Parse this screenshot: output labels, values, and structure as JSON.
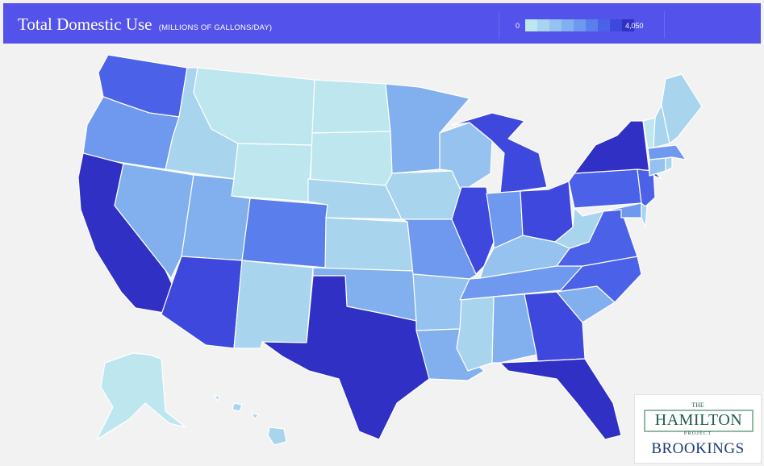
{
  "header": {
    "title": "Total Domestic Use",
    "units": "(MILLIONS OF GALLONS/DAY)"
  },
  "legend": {
    "min": "0",
    "max": "4,050",
    "colors": [
      "#bde6ef",
      "#a9d4ee",
      "#95c2ee",
      "#82b0ee",
      "#6e99ee",
      "#5a7fec",
      "#4b62e8",
      "#3e48dd",
      "#3030c4"
    ]
  },
  "logo": {
    "the": "THE",
    "hamilton": "HAMILTON",
    "project": "PROJECT",
    "brookings": "BROOKINGS"
  },
  "map_data": {
    "metric": "Total Domestic Use",
    "unit": "millions of gallons/day",
    "states": [
      {
        "id": "WA",
        "level": 6
      },
      {
        "id": "OR",
        "level": 4
      },
      {
        "id": "CA",
        "level": 8
      },
      {
        "id": "ID",
        "level": 1
      },
      {
        "id": "NV",
        "level": 3
      },
      {
        "id": "MT",
        "level": 0
      },
      {
        "id": "WY",
        "level": 0
      },
      {
        "id": "UT",
        "level": 3
      },
      {
        "id": "AZ",
        "level": 7
      },
      {
        "id": "CO",
        "level": 5
      },
      {
        "id": "NM",
        "level": 1
      },
      {
        "id": "ND",
        "level": 0
      },
      {
        "id": "SD",
        "level": 0
      },
      {
        "id": "NE",
        "level": 1
      },
      {
        "id": "KS",
        "level": 1
      },
      {
        "id": "OK",
        "level": 3
      },
      {
        "id": "TX",
        "level": 8
      },
      {
        "id": "MN",
        "level": 3
      },
      {
        "id": "IA",
        "level": 1
      },
      {
        "id": "MO",
        "level": 4
      },
      {
        "id": "AR",
        "level": 2
      },
      {
        "id": "LA",
        "level": 3
      },
      {
        "id": "WI",
        "level": 2
      },
      {
        "id": "IL",
        "level": 7
      },
      {
        "id": "MI",
        "level": 7
      },
      {
        "id": "IN",
        "level": 4
      },
      {
        "id": "OH",
        "level": 7
      },
      {
        "id": "KY",
        "level": 2
      },
      {
        "id": "TN",
        "level": 4
      },
      {
        "id": "MS",
        "level": 1
      },
      {
        "id": "AL",
        "level": 3
      },
      {
        "id": "GA",
        "level": 7
      },
      {
        "id": "FL",
        "level": 8
      },
      {
        "id": "SC",
        "level": 3
      },
      {
        "id": "NC",
        "level": 6
      },
      {
        "id": "VA",
        "level": 6
      },
      {
        "id": "WV",
        "level": 1
      },
      {
        "id": "PA",
        "level": 6
      },
      {
        "id": "NY",
        "level": 8
      },
      {
        "id": "VT",
        "level": 0
      },
      {
        "id": "NH",
        "level": 1
      },
      {
        "id": "ME",
        "level": 1
      },
      {
        "id": "MA",
        "level": 4
      },
      {
        "id": "CT",
        "level": 2
      },
      {
        "id": "RI",
        "level": 1
      },
      {
        "id": "NJ",
        "level": 6
      },
      {
        "id": "DE",
        "level": 1
      },
      {
        "id": "MD",
        "level": 4
      },
      {
        "id": "AK",
        "level": 0
      },
      {
        "id": "HI",
        "level": 1
      }
    ]
  }
}
